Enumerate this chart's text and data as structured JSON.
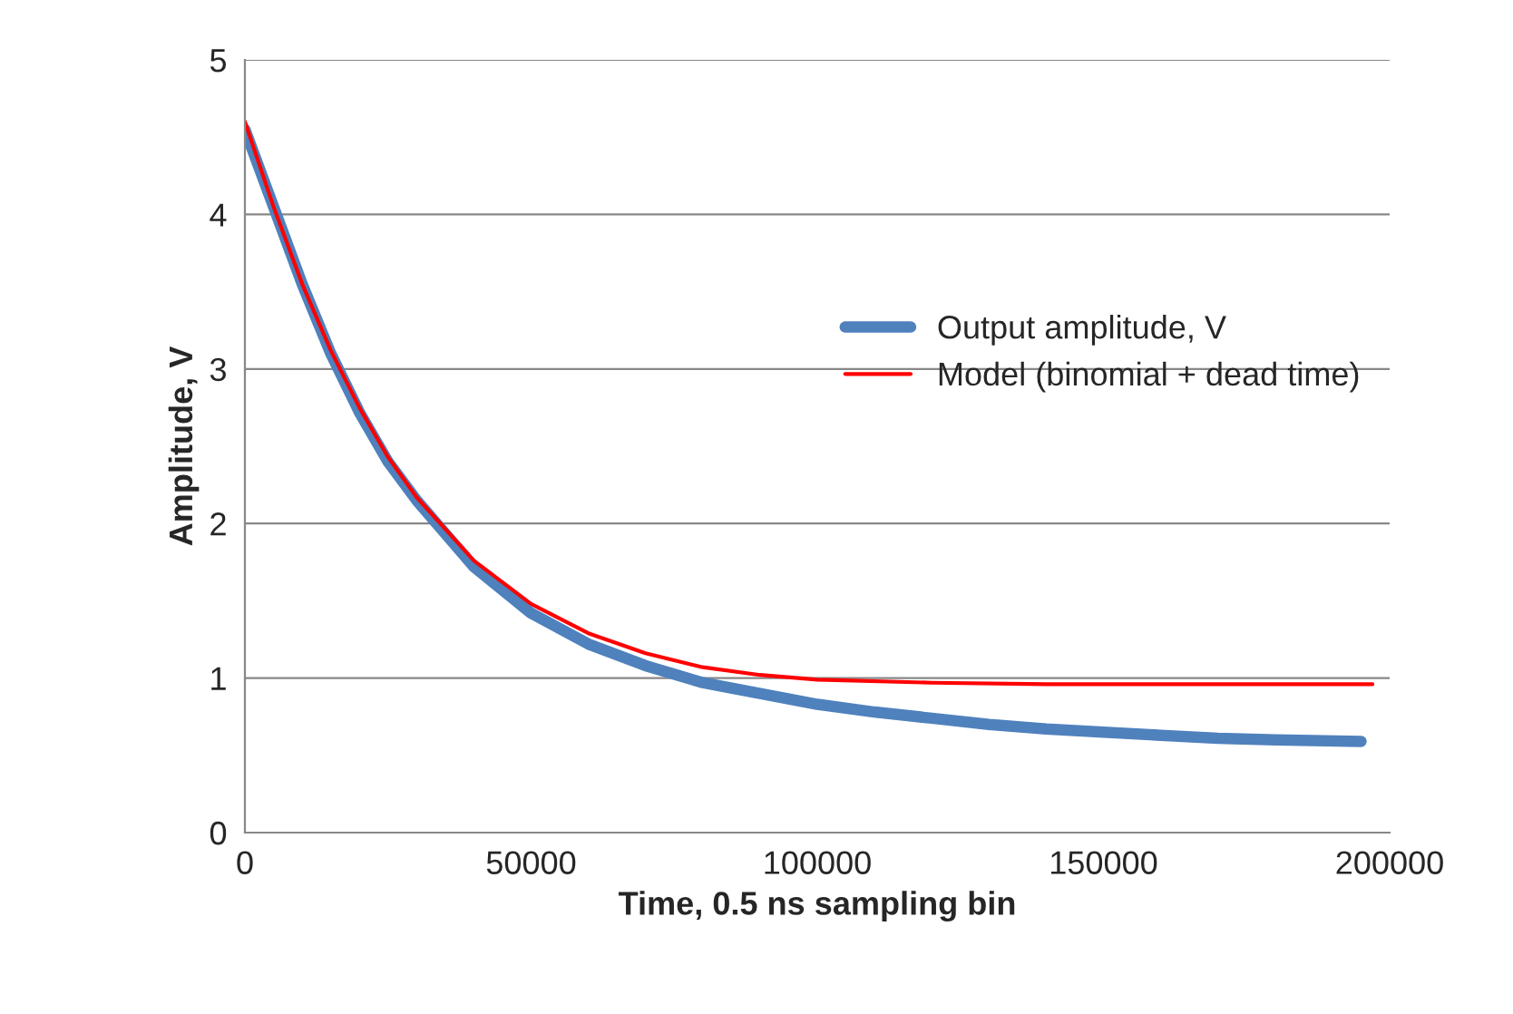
{
  "chart_data": {
    "type": "line",
    "xlabel": "Time, 0.5 ns sampling bin",
    "ylabel": "Amplitude, V",
    "xlim": [
      0,
      200000
    ],
    "xticks": [
      0,
      50000,
      100000,
      150000,
      200000
    ],
    "ylim": [
      0,
      5
    ],
    "yticks": [
      0,
      1,
      2,
      3,
      4,
      5
    ],
    "grid": "y",
    "legend": "right",
    "marker": "none",
    "line_style": "solid",
    "series": [
      {
        "name": "Output amplitude, V",
        "color": "#4f81bd",
        "x": [
          0,
          2000,
          5000,
          10000,
          15000,
          20000,
          25000,
          30000,
          40000,
          50000,
          60000,
          70000,
          80000,
          90000,
          100000,
          110000,
          120000,
          130000,
          140000,
          150000,
          160000,
          170000,
          180000,
          195000
        ],
        "values": [
          4.55,
          4.35,
          4.05,
          3.55,
          3.1,
          2.72,
          2.4,
          2.15,
          1.72,
          1.42,
          1.22,
          1.08,
          0.97,
          0.9,
          0.83,
          0.78,
          0.74,
          0.7,
          0.67,
          0.65,
          0.63,
          0.61,
          0.6,
          0.59
        ]
      },
      {
        "name": "Model (binomial + dead time)",
        "color": "#ff0000",
        "x": [
          0,
          2000,
          5000,
          10000,
          15000,
          20000,
          25000,
          30000,
          40000,
          50000,
          60000,
          70000,
          80000,
          90000,
          100000,
          120000,
          140000,
          170000,
          197000
        ],
        "values": [
          4.6,
          4.38,
          4.05,
          3.55,
          3.12,
          2.75,
          2.43,
          2.17,
          1.76,
          1.48,
          1.29,
          1.16,
          1.07,
          1.02,
          0.99,
          0.97,
          0.96,
          0.96,
          0.96
        ]
      }
    ]
  }
}
